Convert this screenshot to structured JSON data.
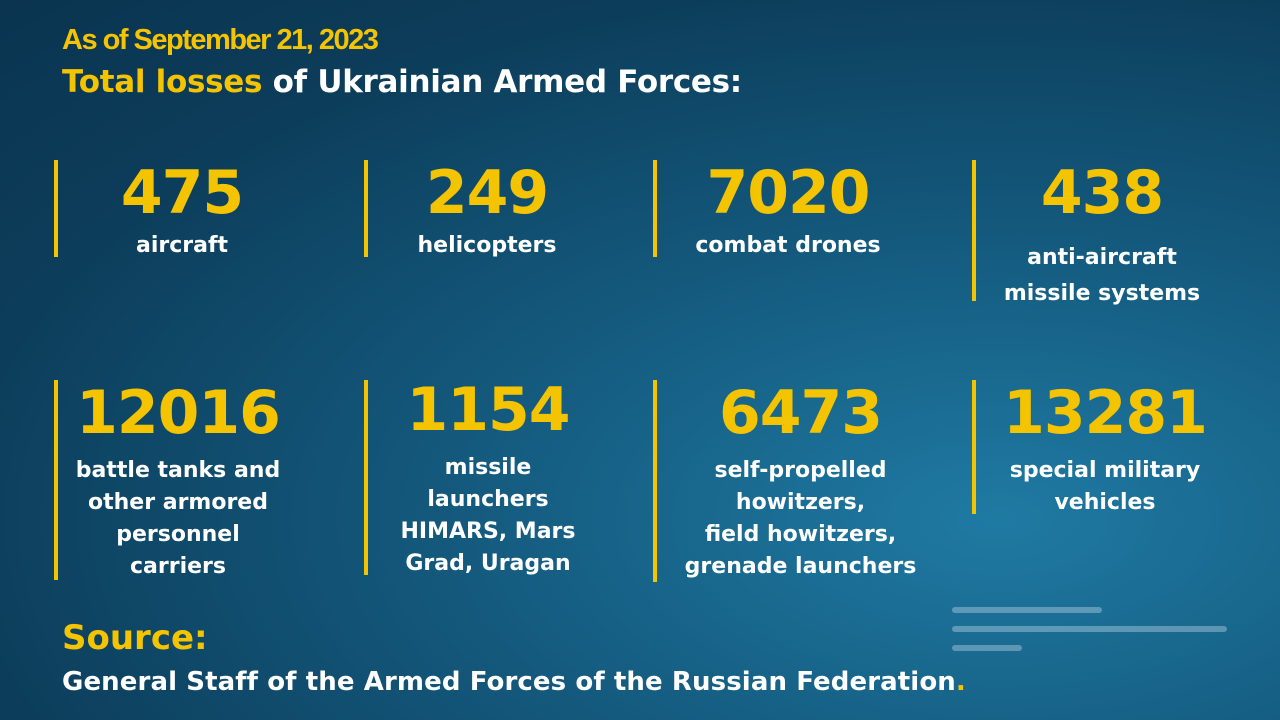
{
  "header": {
    "date": "As of September  21, 2023",
    "title_highlight": "Total losses",
    "title_rest": " of Ukrainian Armed Forces:"
  },
  "stats": [
    {
      "value": "475",
      "label": "aircraft"
    },
    {
      "value": "249",
      "label": "helicopters"
    },
    {
      "value": "7020",
      "label": "combat drones"
    },
    {
      "value": "438",
      "label": "anti-aircraft\nmissile systems"
    },
    {
      "value": "12016",
      "label": "battle tanks and\nother armored\npersonnel\ncarriers"
    },
    {
      "value": "1154",
      "label": "missile\nlaunchers\nHIMARS, Mars\nGrad, Uragan"
    },
    {
      "value": "6473",
      "label": "self-propelled\nhowitzers,\nfield howitzers,\ngrenade launchers"
    },
    {
      "value": "13281",
      "label": "special military\nvehicles"
    }
  ],
  "source": {
    "heading": "Source:",
    "text": "General Staff of the Armed Forces of the Russian Federation",
    "end_mark": "."
  },
  "colors": {
    "accent": "#f5c400",
    "text": "#ffffff",
    "background": "#0e4466"
  }
}
